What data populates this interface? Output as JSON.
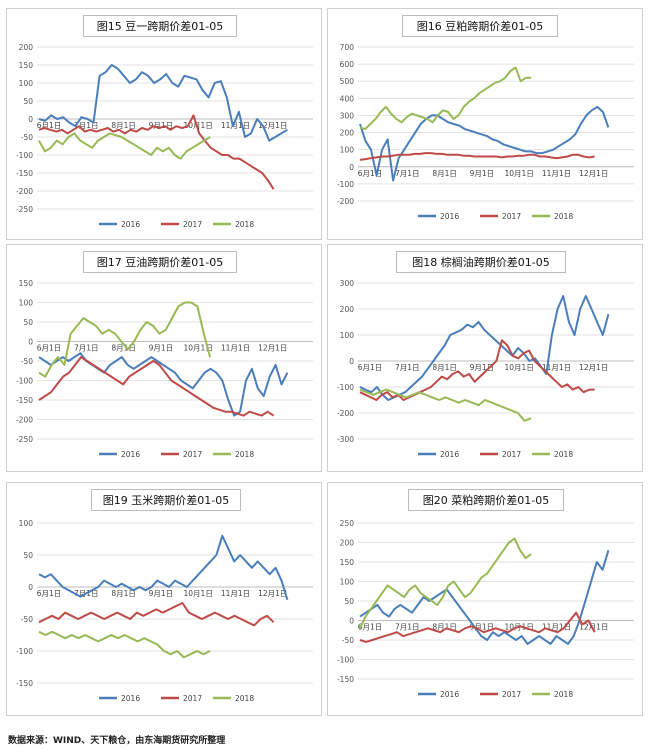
{
  "source_note": "数据来源：WIND、天下粮仓，由东海期货研究所整理",
  "legend_names": [
    "2016",
    "2017",
    "2018"
  ],
  "colors": {
    "s2016": "#4a7ebb",
    "s2017": "#be4b48",
    "s2018": "#98b954"
  },
  "chart_data": [
    {
      "type": "line",
      "title": "图15 豆一跨期价差01-05",
      "ylim": [
        -250,
        200
      ],
      "yticks": [
        200,
        150,
        100,
        50,
        0,
        -50,
        -100,
        -150,
        -200,
        -250
      ],
      "x_labels": [
        "6月1日",
        "7月1日",
        "8月1日",
        "9月1日",
        "10月1日",
        "11月1日",
        "12月1日"
      ],
      "series": [
        {
          "name": "2016",
          "values": [
            0,
            -5,
            10,
            0,
            5,
            -10,
            -20,
            5,
            0,
            -10,
            120,
            130,
            150,
            140,
            120,
            100,
            110,
            130,
            120,
            100,
            110,
            125,
            100,
            90,
            120,
            115,
            110,
            80,
            60,
            100,
            105,
            60,
            -20,
            20,
            -50,
            -40,
            0,
            -20,
            -60,
            -50,
            -40,
            -30
          ]
        },
        {
          "name": "2017",
          "values": [
            -30,
            -25,
            -30,
            -35,
            -30,
            -40,
            -30,
            -20,
            -35,
            -30,
            -35,
            -30,
            -25,
            -35,
            -30,
            -40,
            -30,
            -35,
            -25,
            -30,
            -20,
            -25,
            -20,
            -30,
            -20,
            -25,
            -20,
            10,
            -40,
            -60,
            -80,
            -90,
            -100,
            -100,
            -110,
            -110,
            -120,
            -130,
            -140,
            -150,
            -170,
            -195
          ]
        },
        {
          "name": "2018",
          "values": [
            -60,
            -90,
            -80,
            -60,
            -70,
            -50,
            -40,
            -60,
            -70,
            -80,
            -60,
            -50,
            -40,
            -45,
            -50,
            -60,
            -70,
            -80,
            -90,
            -100,
            -80,
            -90,
            -80,
            -100,
            -110,
            -90,
            -80,
            -70,
            -60,
            -50
          ]
        }
      ]
    },
    {
      "type": "line",
      "title": "图16 豆粕跨期价差01-05",
      "ylim": [
        -200,
        700
      ],
      "yticks": [
        700,
        600,
        500,
        400,
        300,
        200,
        100,
        0,
        -100,
        -200
      ],
      "x_labels": [
        "6月1日",
        "7月1日",
        "8月1日",
        "9月1日",
        "10月1日",
        "11月1日",
        "12月1日"
      ],
      "series": [
        {
          "name": "2016",
          "values": [
            250,
            150,
            100,
            -50,
            100,
            160,
            -80,
            50,
            100,
            150,
            200,
            250,
            280,
            300,
            300,
            280,
            260,
            250,
            240,
            220,
            210,
            200,
            190,
            180,
            160,
            150,
            130,
            120,
            110,
            100,
            90,
            90,
            80,
            80,
            90,
            100,
            120,
            140,
            160,
            190,
            250,
            300,
            330,
            350,
            320,
            230
          ]
        },
        {
          "name": "2017",
          "values": [
            40,
            45,
            50,
            55,
            60,
            60,
            65,
            70,
            70,
            70,
            75,
            75,
            80,
            80,
            75,
            75,
            70,
            70,
            70,
            65,
            65,
            60,
            60,
            60,
            60,
            60,
            55,
            60,
            60,
            65,
            65,
            70,
            70,
            60,
            60,
            55,
            50,
            55,
            60,
            70,
            70,
            60,
            55,
            60
          ]
        },
        {
          "name": "2018",
          "values": [
            230,
            220,
            250,
            280,
            320,
            350,
            310,
            280,
            260,
            290,
            310,
            300,
            290,
            280,
            260,
            300,
            330,
            320,
            280,
            300,
            350,
            380,
            400,
            430,
            450,
            470,
            490,
            500,
            520,
            560,
            580,
            500,
            520,
            520
          ]
        }
      ]
    },
    {
      "type": "line",
      "title": "图17 豆油跨期价差01-05",
      "ylim": [
        -250,
        150
      ],
      "yticks": [
        150,
        100,
        50,
        0,
        -50,
        -100,
        -150,
        -200,
        -250
      ],
      "x_labels": [
        "6月1日",
        "7月1日",
        "8月1日",
        "9月1日",
        "10月1日",
        "11月1日",
        "12月1日"
      ],
      "series": [
        {
          "name": "2016",
          "values": [
            -40,
            -50,
            -60,
            -50,
            -40,
            -50,
            -40,
            -30,
            -50,
            -60,
            -70,
            -80,
            -60,
            -50,
            -40,
            -60,
            -70,
            -60,
            -50,
            -40,
            -50,
            -60,
            -70,
            -80,
            -100,
            -110,
            -120,
            -100,
            -80,
            -70,
            -80,
            -100,
            -150,
            -190,
            -180,
            -100,
            -70,
            -120,
            -140,
            -90,
            -60,
            -110,
            -80
          ]
        },
        {
          "name": "2017",
          "values": [
            -150,
            -140,
            -130,
            -110,
            -90,
            -80,
            -60,
            -40,
            -50,
            -60,
            -70,
            -80,
            -90,
            -100,
            -110,
            -90,
            -80,
            -70,
            -60,
            -50,
            -60,
            -80,
            -100,
            -110,
            -120,
            -130,
            -140,
            -150,
            -160,
            -170,
            -175,
            -180,
            -180,
            -185,
            -190,
            -180,
            -185,
            -190,
            -180,
            -190
          ]
        },
        {
          "name": "2018",
          "values": [
            -80,
            -90,
            -60,
            -40,
            -60,
            20,
            40,
            60,
            50,
            40,
            20,
            30,
            20,
            0,
            -20,
            0,
            30,
            50,
            40,
            20,
            30,
            60,
            90,
            100,
            100,
            90,
            20,
            -40
          ]
        }
      ]
    },
    {
      "type": "line",
      "title": "图18 棕榈油跨期价差01-05",
      "ylim": [
        -300,
        300
      ],
      "yticks": [
        300,
        200,
        100,
        0,
        -100,
        -200,
        -300
      ],
      "x_labels": [
        "6月1日",
        "7月1日",
        "8月1日",
        "9月1日",
        "10月1日",
        "11月1日",
        "12月1日"
      ],
      "series": [
        {
          "name": "2016",
          "values": [
            -100,
            -110,
            -120,
            -100,
            -130,
            -150,
            -140,
            -130,
            -120,
            -100,
            -80,
            -60,
            -30,
            0,
            30,
            60,
            100,
            110,
            120,
            140,
            130,
            150,
            120,
            100,
            80,
            60,
            40,
            20,
            50,
            30,
            0,
            10,
            -20,
            -50,
            100,
            200,
            250,
            150,
            100,
            200,
            250,
            200,
            150,
            100,
            180
          ]
        },
        {
          "name": "2017",
          "values": [
            -120,
            -130,
            -140,
            -150,
            -130,
            -120,
            -140,
            -130,
            -150,
            -140,
            -130,
            -120,
            -110,
            -100,
            -80,
            -60,
            -70,
            -50,
            -40,
            -60,
            -50,
            -80,
            -60,
            -40,
            -20,
            0,
            80,
            60,
            20,
            10,
            30,
            40,
            0,
            -20,
            -40,
            -60,
            -80,
            -100,
            -90,
            -110,
            -100,
            -120,
            -110,
            -110
          ]
        },
        {
          "name": "2018",
          "values": [
            -110,
            -120,
            -130,
            -120,
            -110,
            -120,
            -130,
            -140,
            -130,
            -120,
            -130,
            -140,
            -150,
            -140,
            -150,
            -160,
            -150,
            -160,
            -170,
            -150,
            -160,
            -170,
            -180,
            -190,
            -200,
            -230,
            -220
          ]
        }
      ]
    },
    {
      "type": "line",
      "title": "图19 玉米跨期价差01-05",
      "ylim": [
        -150,
        100
      ],
      "yticks": [
        100,
        50,
        0,
        -50,
        -100,
        -150
      ],
      "x_labels": [
        "6月1日",
        "7月1日",
        "8月1日",
        "9月1日",
        "10月1日",
        "11月1日",
        "12月1日"
      ],
      "series": [
        {
          "name": "2016",
          "values": [
            20,
            15,
            20,
            10,
            0,
            -5,
            -10,
            -15,
            -10,
            -5,
            0,
            10,
            5,
            0,
            5,
            0,
            -5,
            0,
            -5,
            0,
            10,
            5,
            0,
            10,
            5,
            0,
            10,
            20,
            30,
            40,
            50,
            80,
            60,
            40,
            50,
            40,
            30,
            40,
            30,
            20,
            30,
            10,
            -20
          ]
        },
        {
          "name": "2017",
          "values": [
            -55,
            -50,
            -45,
            -50,
            -40,
            -45,
            -50,
            -45,
            -40,
            -45,
            -50,
            -45,
            -40,
            -45,
            -50,
            -40,
            -45,
            -40,
            -35,
            -40,
            -35,
            -30,
            -25,
            -40,
            -45,
            -50,
            -45,
            -40,
            -45,
            -50,
            -45,
            -50,
            -55,
            -60,
            -50,
            -45,
            -55
          ]
        },
        {
          "name": "2018",
          "values": [
            -70,
            -75,
            -70,
            -75,
            -80,
            -75,
            -80,
            -75,
            -80,
            -85,
            -80,
            -75,
            -80,
            -75,
            -80,
            -85,
            -80,
            -85,
            -90,
            -100,
            -105,
            -100,
            -110,
            -105,
            -100,
            -105,
            -100
          ]
        }
      ]
    },
    {
      "type": "line",
      "title": "图20 菜粕跨期价差01-05",
      "ylim": [
        -150,
        250
      ],
      "yticks": [
        250,
        200,
        150,
        100,
        50,
        0,
        -50,
        -100,
        -150
      ],
      "x_labels": [
        "6月1日",
        "7月1日",
        "8月1日",
        "9月1日",
        "10月1日",
        "11月1日",
        "12月1日"
      ],
      "series": [
        {
          "name": "2016",
          "values": [
            10,
            20,
            30,
            40,
            20,
            10,
            30,
            40,
            30,
            20,
            40,
            60,
            50,
            60,
            70,
            80,
            60,
            40,
            20,
            0,
            -20,
            -40,
            -50,
            -30,
            -40,
            -30,
            -40,
            -50,
            -40,
            -60,
            -50,
            -40,
            -50,
            -60,
            -40,
            -50,
            -60,
            -40,
            0,
            50,
            100,
            150,
            130,
            180
          ]
        },
        {
          "name": "2017",
          "values": [
            -50,
            -55,
            -50,
            -45,
            -40,
            -35,
            -30,
            -40,
            -35,
            -30,
            -25,
            -20,
            -25,
            -30,
            -20,
            -25,
            -30,
            -20,
            -15,
            -20,
            -30,
            -25,
            -20,
            -25,
            -30,
            -20,
            -15,
            -20,
            -25,
            -30,
            -20,
            -25,
            -30,
            -20,
            0,
            20,
            -10,
            0,
            -30
          ]
        },
        {
          "name": "2018",
          "values": [
            -20,
            10,
            30,
            50,
            70,
            90,
            80,
            70,
            60,
            80,
            90,
            70,
            60,
            50,
            40,
            60,
            90,
            100,
            80,
            60,
            70,
            90,
            110,
            120,
            140,
            160,
            180,
            200,
            210,
            180,
            160,
            170
          ]
        }
      ]
    }
  ]
}
